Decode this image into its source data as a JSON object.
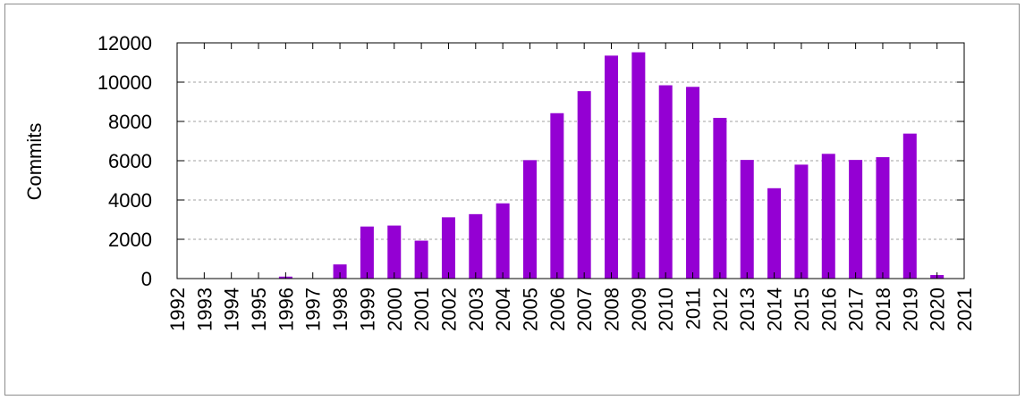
{
  "chart_data": {
    "type": "bar",
    "title": "",
    "xlabel": "",
    "ylabel": "Commits",
    "categories": [
      "1992",
      "1993",
      "1994",
      "1995",
      "1996",
      "1997",
      "1998",
      "1999",
      "2000",
      "2001",
      "2002",
      "2003",
      "2004",
      "2005",
      "2006",
      "2007",
      "2008",
      "2009",
      "2010",
      "2011",
      "2012",
      "2013",
      "2014",
      "2015",
      "2016",
      "2017",
      "2018",
      "2019",
      "2020",
      "2021"
    ],
    "values": [
      0,
      0,
      0,
      0,
      100,
      0,
      720,
      2650,
      2700,
      1930,
      3120,
      3280,
      3830,
      6030,
      8420,
      9540,
      11350,
      11520,
      9840,
      9760,
      8180,
      6040,
      4600,
      5800,
      6350,
      6040,
      6180,
      7380,
      180,
      0
    ],
    "ylim": [
      0,
      12000
    ],
    "yticks": [
      0,
      2000,
      4000,
      6000,
      8000,
      10000,
      12000
    ],
    "bar_color": "#9400d3",
    "grid": true,
    "grid_style": "dashed-horizontal",
    "legend": "none"
  }
}
